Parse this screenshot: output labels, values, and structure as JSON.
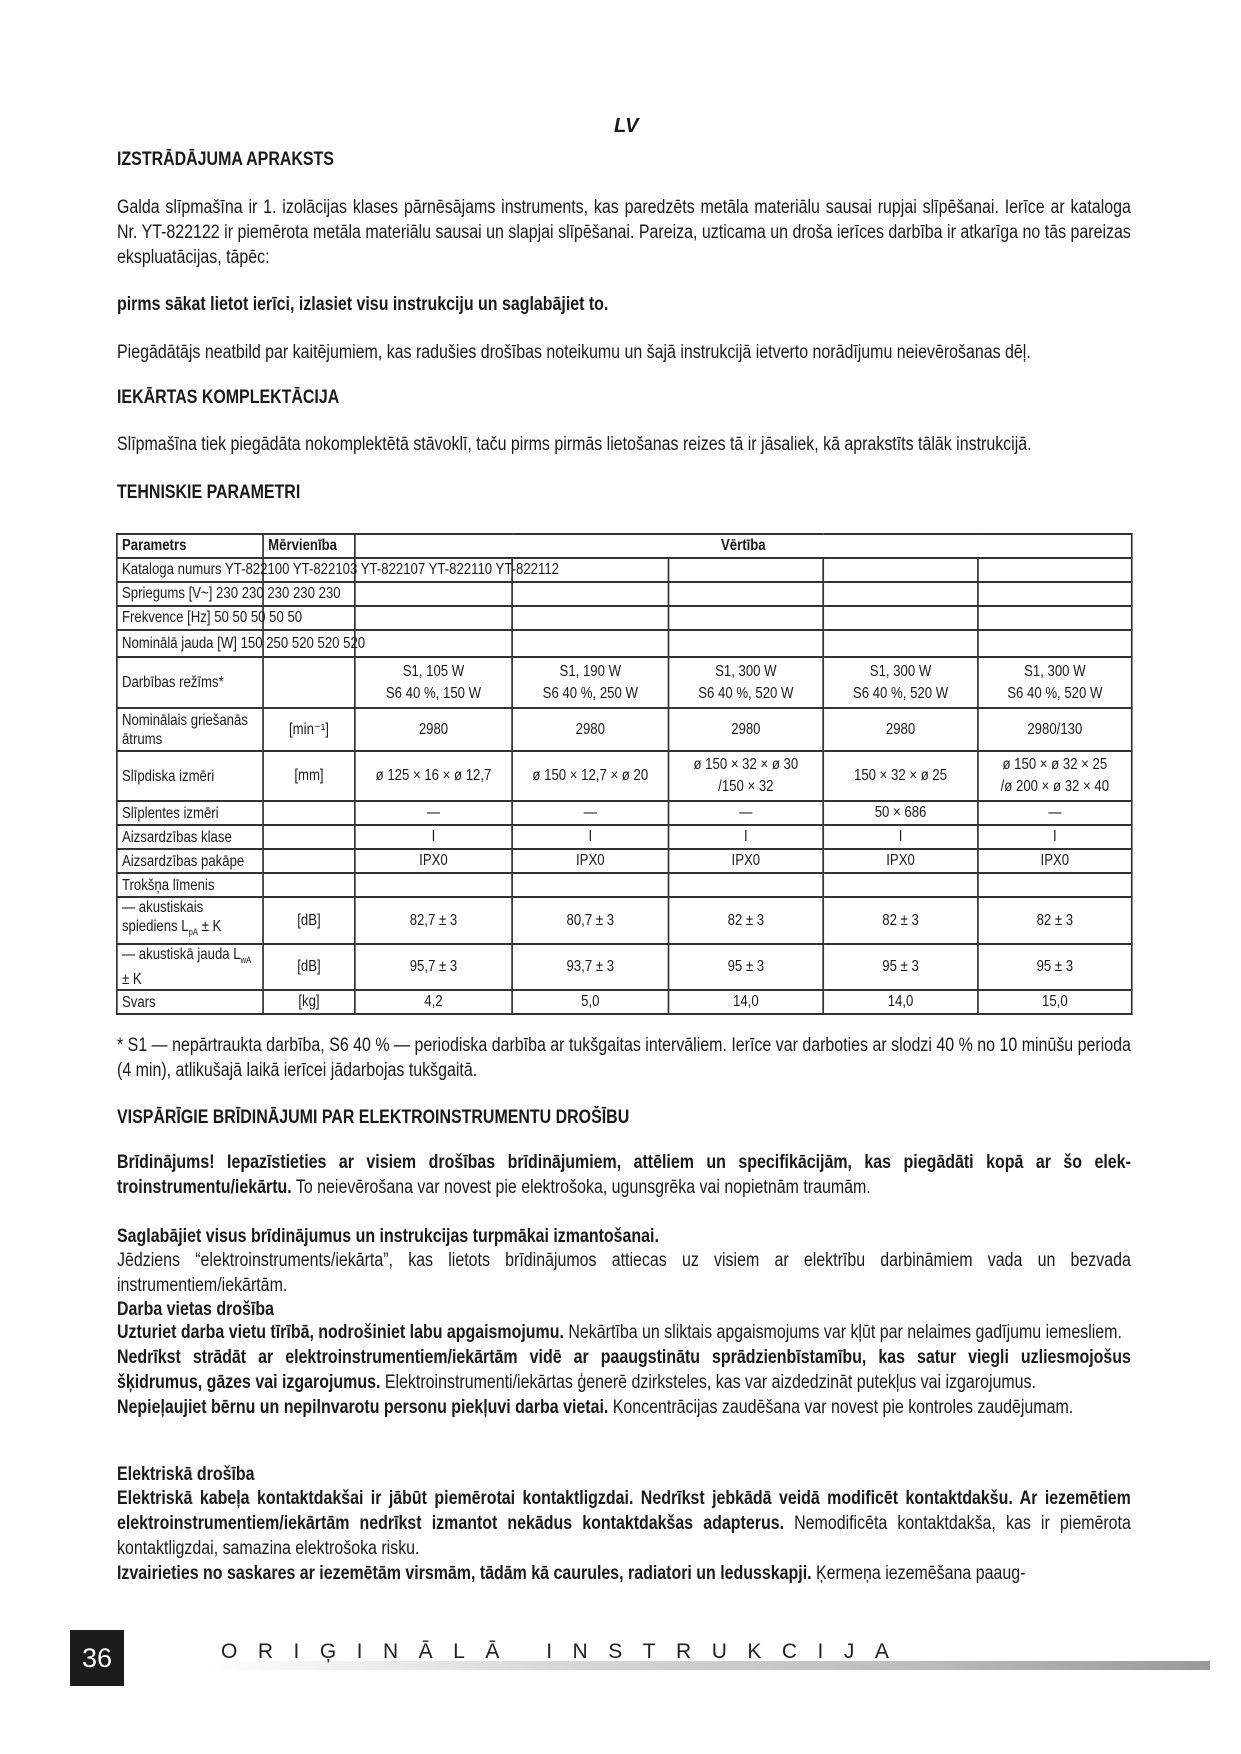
{
  "header": {
    "lang": "LV"
  },
  "intro": {
    "heading": "IZSTRĀDĀJUMA APRAKSTS",
    "paragraph": "Galda slīpmašīna ir 1. izolācijas klases pārnēsājams instruments, kas paredzēts metāla materiālu sausai rupjai slīpēšanai. Ierīce ar kataloga Nr. YT-822122 ir piemērota metāla materiālu sausai un slapjai slīpēšanai. Pareiza, uzticama un droša ierīces darbība ir atkarīga no tās pareizas ekspluatācijas, tāpēc:",
    "bold_note": "pirms sākat lietot ierīci, izlasiet visu instrukciju un saglabājiet to.",
    "disclaimer": "Piegādātājs neatbild par kaitējumiem, kas radušies drošības noteikumu un šajā instrukcijā ietverto norādījumu neievērošanas dēļ."
  },
  "kit": {
    "heading": "IEKĀRTAS KOMPLEKTĀCIJA",
    "paragraph": "Slīpmašīna tiek piegādāta nokomplektētā stāvoklī, taču pirms pirmās lietošanas reizes tā ir jāsaliek, kā aprakstīts tālāk instrukcijā."
  },
  "tech": {
    "heading": "TEHNISKIE PARAMETRI",
    "table": {
      "headers": [
        "Parametrs",
        "Mērvienība",
        "Vērtība"
      ],
      "merged_rows": [
        "Kataloga numurs YT-822100 YT-822103 YT-822107 YT-822110 YT-822112",
        "Spriegums [V~] 230 230 230 230 230",
        "Frekvence [Hz] 50 50 50 50 50",
        "Nominālā jauda [W] 150 250 520 520 520"
      ],
      "rows": [
        {
          "param": "Darbības režīms*",
          "unit": "",
          "values": [
            "S1, 105 W\nS6 40 %, 150 W",
            "S1, 190 W\nS6 40 %, 250 W",
            "S1, 300 W\nS6 40 %, 520 W",
            "S1, 300 W\nS6 40 %, 520 W",
            "S1, 300 W\nS6 40 %, 520 W"
          ]
        },
        {
          "param": "Nominālais griešanās ātrums",
          "unit": "[min⁻¹]",
          "values": [
            "2980",
            "2980",
            "2980",
            "2980",
            "2980/130"
          ]
        },
        {
          "param": "Slīpdiska izmēri",
          "unit": "[mm]",
          "values": [
            "ø 125 × 16 × ø 12,7",
            "ø 150 × 12,7 × ø 20",
            "ø 150 × 32 × ø 30\n/150 × 32",
            "150 × 32 × ø 25",
            "ø 150 × ø 32 × 25\n/ø 200 × ø 32 × 40"
          ]
        },
        {
          "param": "Slīplentes izmēri",
          "unit": "",
          "values": [
            "—",
            "—",
            "—",
            "50 × 686",
            "—"
          ]
        },
        {
          "param": "Aizsardzības klase",
          "unit": "",
          "values": [
            "I",
            "I",
            "I",
            "I",
            "I"
          ]
        },
        {
          "param": "Aizsardzības pakāpe",
          "unit": "",
          "values": [
            "IPX0",
            "IPX0",
            "IPX0",
            "IPX0",
            "IPX0"
          ]
        },
        {
          "param": "Trokšņa līmenis",
          "unit": "",
          "values": [
            "",
            "",
            "",
            "",
            ""
          ]
        },
        {
          "param": "— akustiskais spiediens L",
          "sub": "pA",
          "suffix": " ± K",
          "unit": "[dB]",
          "values": [
            "82,7 ± 3",
            "80,7 ± 3",
            "82 ± 3",
            "82 ± 3",
            "82 ± 3"
          ]
        },
        {
          "param": "— akustiskā jauda L",
          "sub": "wA",
          "suffix": " ± K",
          "unit": "[dB]",
          "values": [
            "95,7 ± 3",
            "93,7 ± 3",
            "95 ± 3",
            "95 ± 3",
            "95 ± 3"
          ]
        },
        {
          "param": "Svars",
          "unit": "[kg]",
          "values": [
            "4,2",
            "5,0",
            "14,0",
            "14,0",
            "15,0"
          ]
        }
      ]
    },
    "footnote": "* S1 — nepārtraukta darbība, S6 40 % — periodiska darbība ar tukšgaitas intervāliem. Ierīce var darboties ar slodzi 40 % no 10 minūšu perioda (4 min), atlikušajā laikā ierīcei jādarbojas tukšgaitā."
  },
  "safety": {
    "heading": "VISPĀRĪGIE BRĪDINĀJUMI PAR ELEKTROINSTRUMENTU DROŠĪBU",
    "warning_bold": "Brīdinājums! Iepazīstieties ar visiem drošības brīdinājumiem, attēliem un specifikācijām, kas piegādāti kopā ar šo elek­troinstrumentu/iekārtu.",
    "warning_text": " To neievērošana var novest pie elektrošoka, ugunsgrēka vai nopietnām traumām.",
    "keep_bold": "Saglabājiet visus brīdinājumus un instrukcijas turpmākai izmantošanai.",
    "definition": "Jēdziens “elektroinstruments/iekārta”, kas lietots brīdinājumos attiecas uz visiem ar elektrību darbināmiem vada un bezvada instrumentiem/iekārtām.",
    "work_area": {
      "heading": "Darba vietas drošība",
      "items": [
        {
          "bold": "Uzturiet darba vietu tīrībā, nodrošiniet labu apgaismojumu.",
          "text": " Nekārtība un sliktais apgaismojums var kļūt par nelaimes gadījumu iemesliem."
        },
        {
          "bold": "Nedrīkst strādāt ar elektroinstrumentiem/iekārtām vidē ar paaugstinātu sprādzienbīstamību, kas satur viegli uzliesmojošus šķidrumus, gāzes vai izgarojumus.",
          "text": " Elektroinstrumenti/iekārtas ģenerē dzirksteles, kas var aizdedzināt putekļus vai izgarojumus."
        },
        {
          "bold": "Nepieļaujiet bērnu un nepilnvarotu personu piekļuvi darba vietai.",
          "text": " Koncentrācijas zaudēšana var novest pie kontroles zaudējumam."
        }
      ]
    },
    "electrical": {
      "heading": "Elektriskā drošība",
      "items": [
        {
          "bold": "Elektriskā kabeļa kontaktdakšai ir jābūt piemērotai kontaktligzdai. Nedrīkst jebkādā veidā modificēt kontaktdakšu. Ar iezemētiem elektroinstrumentiem/iekārtām nedrīkst izmantot nekādus kontaktdakšas adapterus.",
          "text": " Nemodificēta kontakt­dakša, kas ir piemērota kontaktligzdai, samazina elektrošoka risku."
        },
        {
          "bold": "Izvairieties no saskares ar iezemētām virsmām, tādām kā caurules, radiatori un ledusskapji.",
          "text": " Ķermeņa iezemēšana paaug-"
        }
      ]
    }
  },
  "footer": {
    "page_number": "36",
    "title": "ORIĢINĀLĀ INSTRUKCIJA"
  }
}
